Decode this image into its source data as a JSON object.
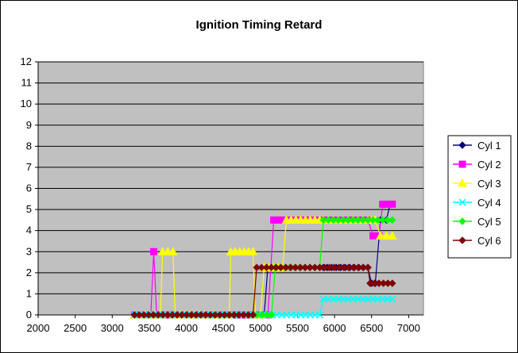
{
  "chart_data": {
    "type": "line",
    "title": "Ignition Timing Retard",
    "xlabel": "",
    "ylabel": "",
    "xlim": [
      2000,
      7200
    ],
    "ylim": [
      0,
      12
    ],
    "xticks": [
      2000,
      2500,
      3000,
      3500,
      4000,
      4500,
      5000,
      5500,
      6000,
      6500,
      7000
    ],
    "yticks": [
      0,
      1,
      2,
      3,
      4,
      5,
      6,
      7,
      8,
      9,
      10,
      11,
      12
    ],
    "grid": "horizontal",
    "plot_background": "#c0c0c0",
    "legend_position": "right",
    "series": [
      {
        "name": "Cyl 1",
        "color": "#000080",
        "marker": "diamond",
        "points": [
          [
            3300,
            0
          ],
          [
            4950,
            0
          ],
          [
            5050,
            0
          ],
          [
            5100,
            2.25
          ],
          [
            5200,
            2.25
          ],
          [
            5800,
            2.25
          ],
          [
            5900,
            2.25
          ],
          [
            6450,
            2.25
          ],
          [
            6500,
            1.5
          ],
          [
            6550,
            1.5
          ],
          [
            6620,
            4.5
          ],
          [
            6700,
            4.5
          ],
          [
            6750,
            5.25
          ]
        ]
      },
      {
        "name": "Cyl 2",
        "color": "#ff00ff",
        "marker": "square",
        "points": [
          [
            3300,
            0
          ],
          [
            3520,
            0
          ],
          [
            3560,
            3
          ],
          [
            3600,
            0
          ],
          [
            5100,
            0
          ],
          [
            5180,
            4.5
          ],
          [
            5250,
            4.5
          ],
          [
            5900,
            4.5
          ],
          [
            6450,
            4.5
          ],
          [
            6520,
            3.75
          ],
          [
            6600,
            3.75
          ],
          [
            6650,
            5.25
          ],
          [
            6780,
            5.25
          ]
        ]
      },
      {
        "name": "Cyl 3",
        "color": "#ffff00",
        "marker": "triangle",
        "points": [
          [
            3300,
            0
          ],
          [
            3650,
            0
          ],
          [
            3680,
            3
          ],
          [
            3820,
            3
          ],
          [
            3850,
            0
          ],
          [
            4580,
            0
          ],
          [
            4600,
            3
          ],
          [
            4900,
            3
          ],
          [
            4930,
            0
          ],
          [
            5000,
            0
          ],
          [
            5050,
            2.25
          ],
          [
            5300,
            2.25
          ],
          [
            5350,
            4.5
          ],
          [
            5800,
            4.5
          ],
          [
            5850,
            4.5
          ],
          [
            6450,
            4.5
          ],
          [
            6550,
            4.5
          ],
          [
            6620,
            3.75
          ],
          [
            6780,
            3.75
          ]
        ]
      },
      {
        "name": "Cyl 4",
        "color": "#00ffff",
        "marker": "x",
        "points": [
          [
            3300,
            0
          ],
          [
            5800,
            0
          ],
          [
            5850,
            0.75
          ],
          [
            6450,
            0.75
          ],
          [
            6780,
            0.75
          ]
        ]
      },
      {
        "name": "Cyl 5",
        "color": "#00ff00",
        "marker": "diamond",
        "points": [
          [
            3300,
            0
          ],
          [
            5150,
            0
          ],
          [
            5200,
            2.25
          ],
          [
            5800,
            2.25
          ],
          [
            5850,
            4.5
          ],
          [
            6450,
            4.5
          ],
          [
            6780,
            4.5
          ]
        ]
      },
      {
        "name": "Cyl 6",
        "color": "#800000",
        "marker": "diamond",
        "points": [
          [
            3300,
            0
          ],
          [
            4900,
            0
          ],
          [
            4950,
            2.25
          ],
          [
            5800,
            2.25
          ],
          [
            6450,
            2.25
          ],
          [
            6480,
            1.5
          ],
          [
            6780,
            1.5
          ]
        ]
      }
    ]
  }
}
